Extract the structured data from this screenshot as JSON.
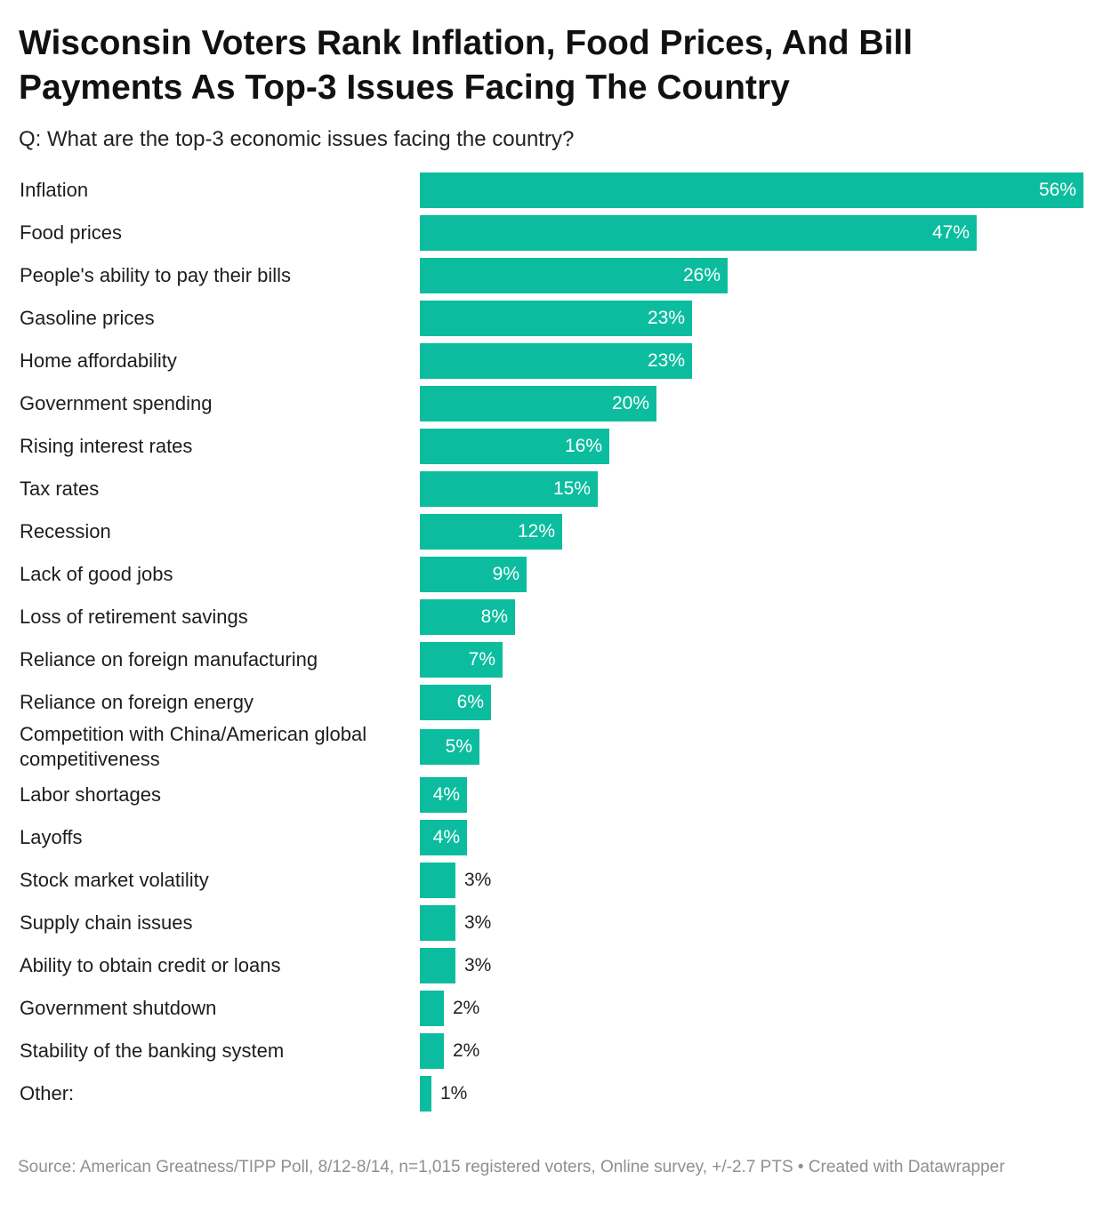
{
  "header": {
    "title": "Wisconsin Voters Rank Inflation, Food Prices, And Bill Payments As Top-3 Issues Facing The Country",
    "subtitle": "Q: What are the top-3 economic issues facing the country?"
  },
  "footer": {
    "source": "Source: American Greatness/TIPP Poll, 8/12-8/14, n=1,015 registered voters, Online survey, +/-2.7 PTS • Created with Datawrapper"
  },
  "colors": {
    "bar": "#0bbd9e",
    "label_inside": "#ffffff",
    "label_outside": "#222222"
  },
  "chart_data": {
    "type": "bar",
    "orientation": "horizontal",
    "title": "Wisconsin Voters Rank Inflation, Food Prices, And Bill Payments As Top-3 Issues Facing The Country",
    "subtitle": "Q: What are the top-3 economic issues facing the country?",
    "xlabel": "",
    "ylabel": "",
    "unit": "%",
    "xlim": [
      0,
      56
    ],
    "grid": false,
    "categories": [
      "Inflation",
      "Food prices",
      "People's ability to pay their bills",
      "Gasoline prices",
      "Home affordability",
      "Government spending",
      "Rising interest rates",
      "Tax rates",
      "Recession",
      "Lack of good jobs",
      "Loss of retirement savings",
      "Reliance on foreign manufacturing",
      "Reliance on foreign energy",
      "Competition with China/American global competitiveness",
      "Labor shortages",
      "Layoffs",
      "Stock market volatility",
      "Supply chain issues",
      "Ability to obtain credit or loans",
      "Government shutdown",
      "Stability of the banking system",
      "Other:"
    ],
    "values": [
      56,
      47,
      26,
      23,
      23,
      20,
      16,
      15,
      12,
      9,
      8,
      7,
      6,
      5,
      4,
      4,
      3,
      3,
      3,
      2,
      2,
      1
    ],
    "value_labels": [
      "56%",
      "47%",
      "26%",
      "23%",
      "23%",
      "20%",
      "16%",
      "15%",
      "12%",
      "9%",
      "8%",
      "7%",
      "6%",
      "5%",
      "4%",
      "4%",
      "3%",
      "3%",
      "3%",
      "2%",
      "2%",
      "1%"
    ]
  }
}
